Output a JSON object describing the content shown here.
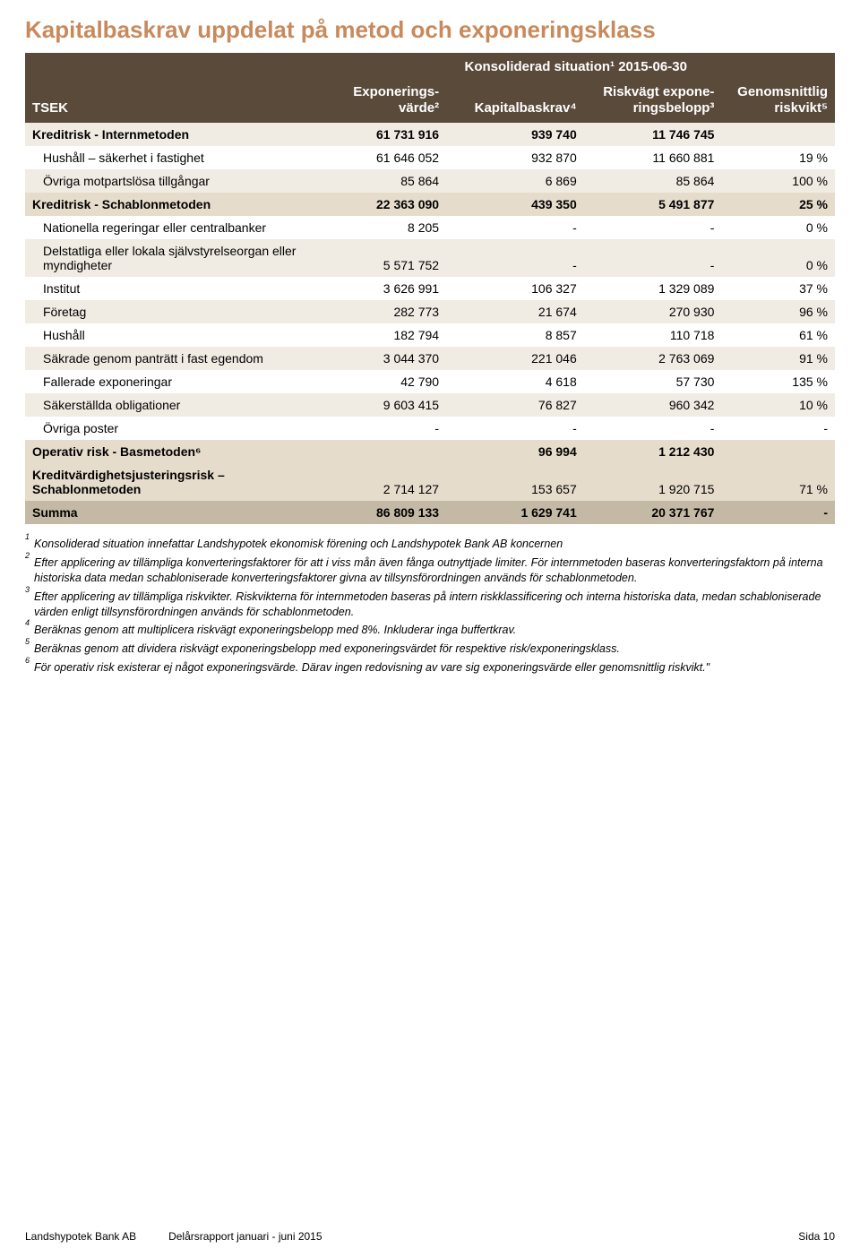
{
  "colors": {
    "title": "#c88a5c",
    "header_bg": "#5a4a3a",
    "header_text": "#ffffff",
    "row_light": "#f0ebe3",
    "row_mid": "#e6dccc",
    "row_sum": "#c4b9a4",
    "text": "#000000"
  },
  "title": "Kapitalbaskrav uppdelat på metod och exponeringsklass",
  "superheader": "Konsoliderad situation¹ 2015-06-30",
  "columns": {
    "tsek": "TSEK",
    "exp": "Exponerings-\nvärde²",
    "kap": "Kapitalbaskrav⁴",
    "risk": "Riskvägt expone-\nringsbelopp³",
    "gen": "Genomsnittlig\nriskvikt⁵"
  },
  "col_widths": [
    "36%",
    "16%",
    "17%",
    "17%",
    "14%"
  ],
  "rows": [
    {
      "label": "Kreditrisk - Internmetoden",
      "v": [
        "61 731 916",
        "939 740",
        "11 746 745",
        ""
      ],
      "style": "bold",
      "bg": "row_light"
    },
    {
      "label": "Hushåll – säkerhet i fastighet",
      "v": [
        "61 646 052",
        "932 870",
        "11 660 881",
        "19 %"
      ],
      "indent": true,
      "bg": ""
    },
    {
      "label": "Övriga motpartslösa tillgångar",
      "v": [
        "85 864",
        "6 869",
        "85 864",
        "100 %"
      ],
      "indent": true,
      "bg": "row_light"
    },
    {
      "label": "Kreditrisk - Schablonmetoden",
      "v": [
        "22 363 090",
        "439 350",
        "5 491 877",
        "25 %"
      ],
      "style": "bold",
      "bg": "row_mid"
    },
    {
      "label": "Nationella regeringar eller centralbanker",
      "v": [
        "8 205",
        "-",
        "-",
        "0 %"
      ],
      "indent": true,
      "bg": ""
    },
    {
      "label": "Delstatliga eller lokala självstyrelseorgan eller myndigheter",
      "v": [
        "5 571 752",
        "-",
        "-",
        "0 %"
      ],
      "indent": true,
      "bg": "row_light"
    },
    {
      "label": "Institut",
      "v": [
        "3 626 991",
        "106 327",
        "1 329 089",
        "37 %"
      ],
      "indent": true,
      "bg": ""
    },
    {
      "label": "Företag",
      "v": [
        "282 773",
        "21 674",
        "270 930",
        "96 %"
      ],
      "indent": true,
      "bg": "row_light"
    },
    {
      "label": "Hushåll",
      "v": [
        "182 794",
        "8 857",
        "110 718",
        "61 %"
      ],
      "indent": true,
      "bg": ""
    },
    {
      "label": "Säkrade genom panträtt i fast egendom",
      "v": [
        "3 044 370",
        "221 046",
        "2 763 069",
        "91 %"
      ],
      "indent": true,
      "bg": "row_light"
    },
    {
      "label": "Fallerade exponeringar",
      "v": [
        "42 790",
        "4 618",
        "57 730",
        "135 %"
      ],
      "indent": true,
      "bg": ""
    },
    {
      "label": "Säkerställda obligationer",
      "v": [
        "9 603 415",
        "76 827",
        "960 342",
        "10 %"
      ],
      "indent": true,
      "bg": "row_light"
    },
    {
      "label": "Övriga poster",
      "v": [
        "-",
        "-",
        "-",
        "-"
      ],
      "indent": true,
      "bg": ""
    },
    {
      "label": "Operativ risk - Basmetoden⁶",
      "v": [
        "",
        "96 994",
        "1 212 430",
        ""
      ],
      "style": "bold",
      "bg": "row_mid"
    },
    {
      "label": "Kreditvärdighetsjusteringsrisk – Schablonmetoden",
      "v": [
        "2 714 127",
        "153 657",
        "1 920 715",
        "71 %"
      ],
      "style": "boldlabel",
      "bg": "row_mid"
    },
    {
      "label": "Summa",
      "v": [
        "86 809 133",
        "1 629 741",
        "20 371 767",
        "-"
      ],
      "style": "sum",
      "bg": "row_sum"
    }
  ],
  "footnotes": [
    "Konsoliderad situation innefattar Landshypotek ekonomisk förening och Landshypotek Bank AB koncernen",
    "Efter applicering av tillämpliga konverteringsfaktorer för att i viss mån även fånga outnyttjade limiter. För internmetoden baseras konverteringsfaktorn på interna historiska data medan schabloniserade konverteringsfaktorer givna av tillsynsförordningen används för schablonmetoden.",
    "Efter applicering av tillämpliga riskvikter. Riskvikterna för internmetoden baseras på intern riskklassificering och interna historiska data, medan schabloniserade värden enligt tillsynsförordningen används för schablonmetoden.",
    "Beräknas genom att multiplicera riskvägt exponeringsbelopp med 8%. Inkluderar inga buffertkrav.",
    "Beräknas genom att dividera riskvägt exponeringsbelopp med exponeringsvärdet för respektive risk/exponeringsklass.",
    "För operativ risk existerar ej något exponeringsvärde. Därav ingen redovisning av vare sig exponeringsvärde eller genomsnittlig riskvikt.\""
  ],
  "footer": {
    "left": "Landshypotek Bank AB",
    "mid": "Delårsrapport januari - juni 2015",
    "right": "Sida 10"
  }
}
